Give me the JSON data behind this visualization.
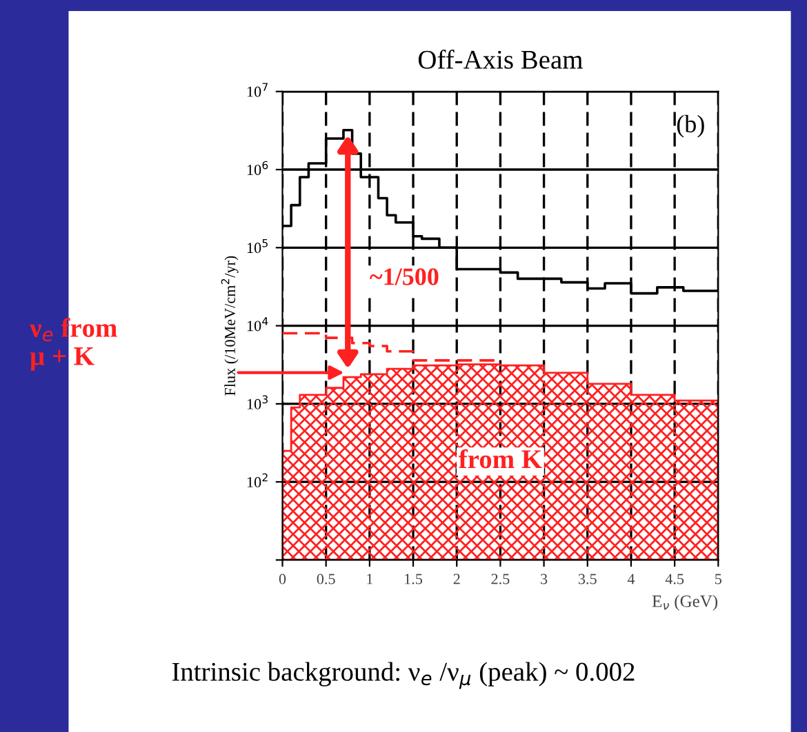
{
  "chart_data": {
    "type": "step",
    "title": "Off-Axis Beam",
    "xlabel": "E$_{ν}$ (GeV)",
    "ylabel": "Flux (/10MeV/cm$^{2}$/yr)",
    "log": "y",
    "xlim": [
      0,
      5
    ],
    "ylim": [
      10,
      10000000
    ],
    "xticks": [
      0,
      0.5,
      1,
      1.5,
      2,
      2.5,
      3,
      3.5,
      4,
      4.5,
      5
    ],
    "yticks": [
      {
        "value": 10,
        "label": null
      },
      {
        "value": 100,
        "label": "10$^{2}$"
      },
      {
        "value": 1000,
        "label": "10$^{3}$"
      },
      {
        "value": 10000,
        "label": "10$^{4}$"
      },
      {
        "value": 100000,
        "label": "10$^{5}$"
      },
      {
        "value": 1000000,
        "label": "10$^{6}$"
      },
      {
        "value": 10000000,
        "label": "10$^{7}$"
      }
    ],
    "grid": true,
    "legend": false,
    "series": [
      {
        "color": "#000000",
        "line_style": "solid",
        "x": [
          0,
          0.1,
          0.2,
          0.3,
          0.4,
          0.5,
          0.6,
          0.7,
          0.8,
          0.9,
          1.0,
          1.1,
          1.2,
          1.3,
          1.5,
          1.6,
          1.8,
          2.0,
          2.2,
          2.5,
          2.7,
          3.0,
          3.2,
          3.5,
          3.7,
          4.0,
          4.3,
          4.6,
          5.0
        ],
        "values": [
          190000,
          350000,
          800000,
          1200000,
          1200000,
          2500000,
          2500000,
          3200000,
          1600000,
          800000,
          800000,
          430000,
          260000,
          210000,
          140000,
          130000,
          100000,
          53000,
          53000,
          48000,
          40000,
          40000,
          36000,
          30000,
          35000,
          26000,
          31000,
          28000,
          28000
        ]
      },
      {
        "color": "#ff2020",
        "line_style": "dashed",
        "x": [
          0,
          0.2,
          0.5,
          0.8,
          1.0,
          1.2,
          1.5,
          2.0,
          2.5
        ],
        "values": [
          8000,
          8000,
          7000,
          6000,
          5500,
          4700,
          3600,
          3600,
          3600
        ]
      },
      {
        "type": "area",
        "color": "#ff2020",
        "line_style": "solid",
        "x": [
          0,
          0.1,
          0.2,
          0.3,
          0.5,
          0.7,
          0.9,
          1.2,
          1.5,
          2.0,
          2.5,
          3.0,
          3.5,
          4.0,
          4.5,
          5.0
        ],
        "values": [
          250,
          900,
          1300,
          1300,
          1600,
          2200,
          2400,
          2800,
          3100,
          3200,
          3100,
          2500,
          1800,
          1300,
          1100,
          1100
        ]
      }
    ],
    "annotations": [
      "(b)",
      "~1/500",
      "ν$_{e}$ from\nμ + K",
      "from K",
      "Intrinsic background: ν$_{e}$ /ν$_{μ}$ (peak) ~ 0.002"
    ]
  }
}
